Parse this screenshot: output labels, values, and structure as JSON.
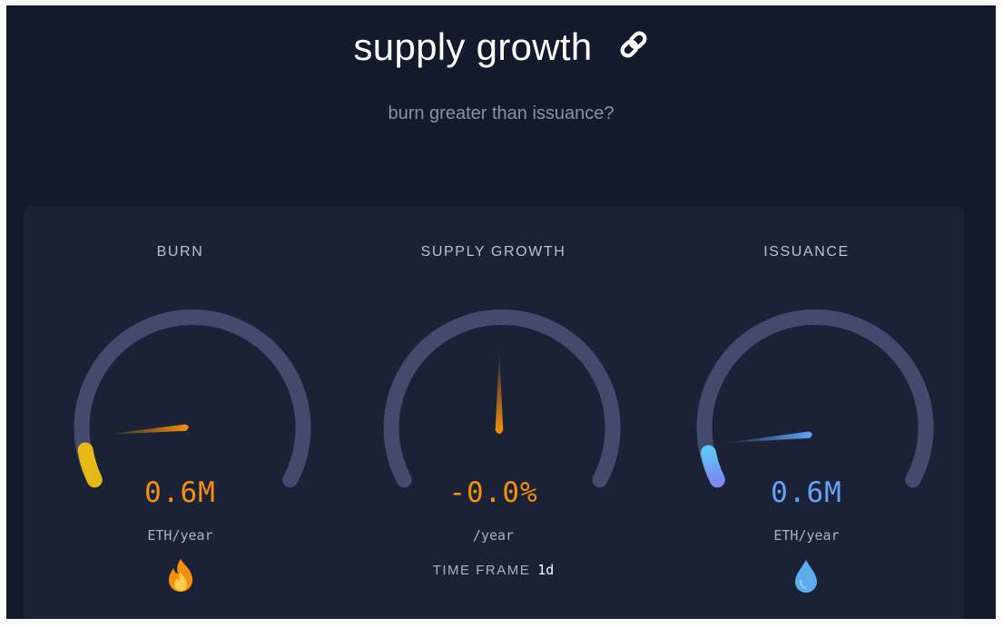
{
  "header": {
    "title": "supply growth",
    "link_icon": "link-icon",
    "subtitle": "burn greater than issuance?"
  },
  "colors": {
    "background": "#131a2b",
    "card": "#1b2236",
    "gauge_track": "#444a6b",
    "burn_accent": "#f4900c",
    "burn_fill": "#e8b916",
    "issuance_accent": "#62a2f8",
    "issuance_fill": "#5fc3f5"
  },
  "panels": {
    "burn": {
      "label": "BURN",
      "value": "0.6M",
      "unit": "ETH/year",
      "icon": "fire-icon"
    },
    "supply_growth": {
      "label": "SUPPLY GROWTH",
      "value": "-0.0%",
      "unit": "/year",
      "timeframe_label": "TIME FRAME",
      "timeframe_value": "1d"
    },
    "issuance": {
      "label": "ISSUANCE",
      "value": "0.6M",
      "unit": "ETH/year",
      "icon": "droplet-icon"
    }
  }
}
